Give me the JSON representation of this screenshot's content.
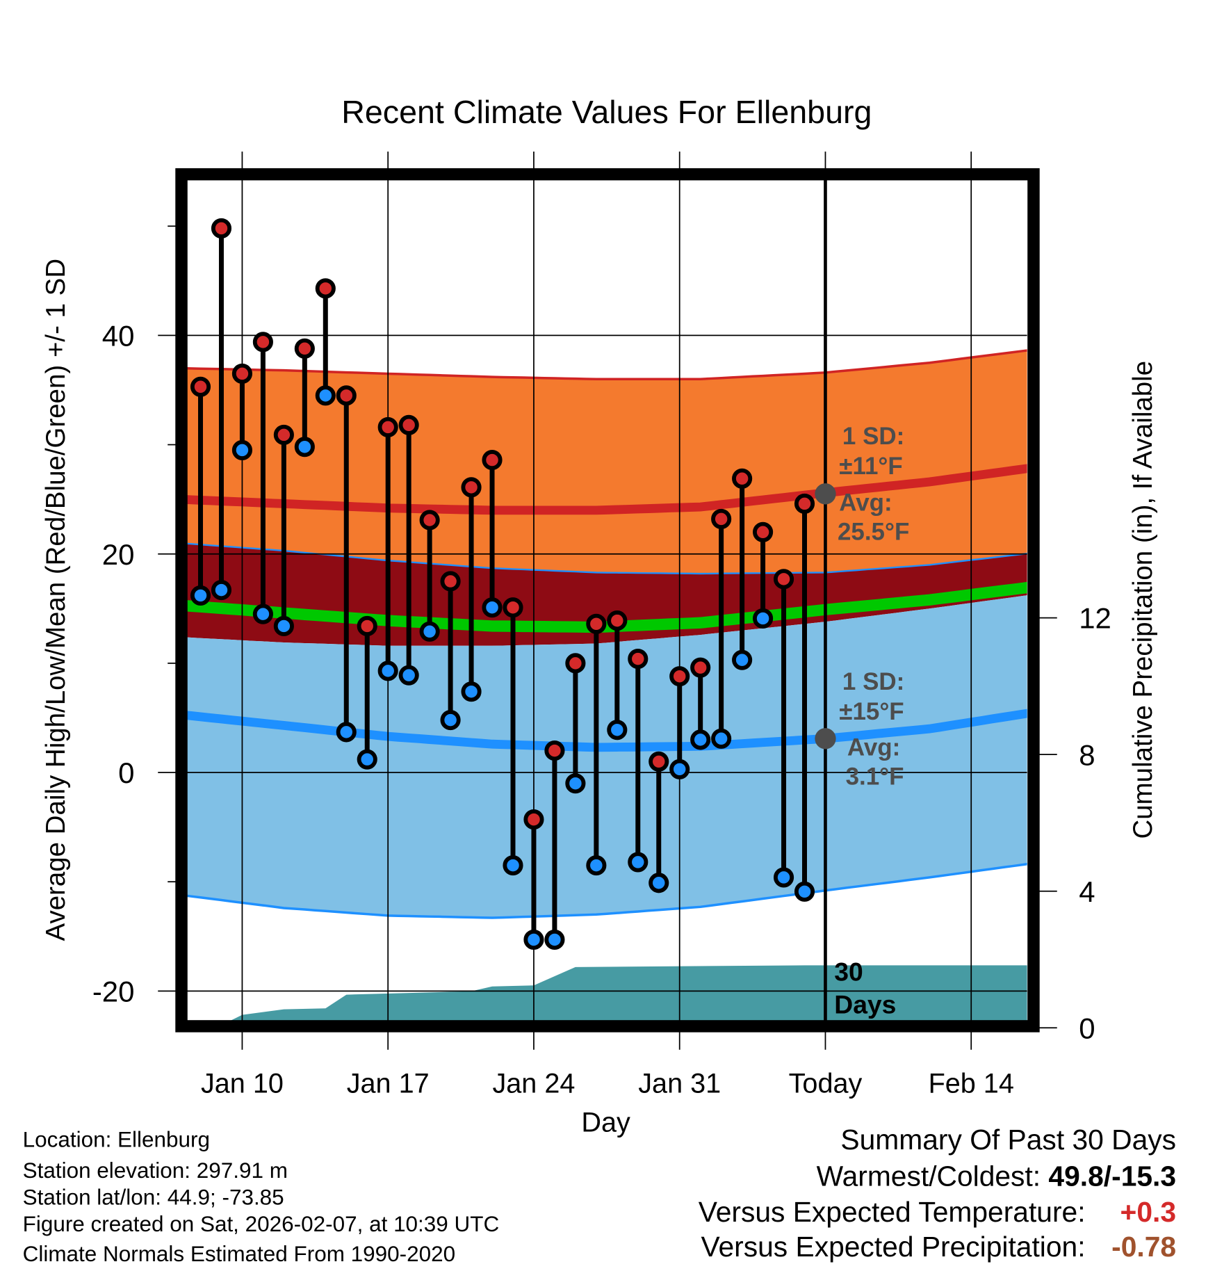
{
  "chart_data": {
    "type": "line",
    "title": "Recent Climate Values For Ellenburg",
    "xlabel": "Day",
    "ylabel": "Average Daily High/Low/Mean (Red/Blue/Green) +/- 1 SD",
    "ylabel_right": "Cumulative Precipitation (in), If Available",
    "ylim": [
      -23,
      55
    ],
    "ylim_right": [
      0,
      18.5
    ],
    "xlim_day_of_year": [
      7.35,
      47.7
    ],
    "grid": true,
    "y_ticks": [
      {
        "value": 40,
        "label": "40"
      },
      {
        "value": 20,
        "label": "20"
      },
      {
        "value": 0,
        "label": "0"
      },
      {
        "value": -20,
        "label": "-20"
      }
    ],
    "y_minor_ticks": [
      50,
      30,
      10,
      -10
    ],
    "y_right_ticks": [
      {
        "value": 12,
        "label": "12"
      },
      {
        "value": 8,
        "label": "8"
      },
      {
        "value": 4,
        "label": "4"
      },
      {
        "value": 0,
        "label": "0"
      }
    ],
    "x_ticks": [
      {
        "day": 10,
        "label": "Jan 10"
      },
      {
        "day": 17,
        "label": "Jan 17"
      },
      {
        "day": 24,
        "label": "Jan 24"
      },
      {
        "day": 31,
        "label": "Jan 31"
      },
      {
        "day": 38,
        "label": "Today"
      },
      {
        "day": 45,
        "label": "Feb 14"
      }
    ],
    "today_day": 38,
    "observations": {
      "days": [
        "Jan 8",
        "Jan 9",
        "Jan 10",
        "Jan 11",
        "Jan 12",
        "Jan 13",
        "Jan 14",
        "Jan 15",
        "Jan 16",
        "Jan 17",
        "Jan 18",
        "Jan 19",
        "Jan 20",
        "Jan 21",
        "Jan 22",
        "Jan 23",
        "Jan 24",
        "Jan 25",
        "Jan 26",
        "Jan 27",
        "Jan 28",
        "Jan 29",
        "Jan 30",
        "Jan 31",
        "Feb 1",
        "Feb 2",
        "Feb 3",
        "Feb 4",
        "Feb 5",
        "Feb 6"
      ],
      "day_of_year": [
        8,
        9,
        10,
        11,
        12,
        13,
        14,
        15,
        16,
        17,
        18,
        19,
        20,
        21,
        22,
        23,
        24,
        25,
        26,
        27,
        28,
        29,
        30,
        31,
        32,
        33,
        34,
        35,
        36,
        37
      ],
      "high": [
        35.3,
        49.8,
        36.5,
        39.4,
        30.9,
        38.8,
        44.3,
        34.5,
        13.4,
        31.6,
        31.8,
        23.1,
        17.5,
        26.1,
        28.6,
        15.1,
        -4.3,
        2.0,
        10.0,
        13.6,
        13.9,
        10.4,
        1.0,
        8.8,
        9.6,
        23.2,
        26.9,
        22.0,
        17.7,
        24.6
      ],
      "low": [
        16.2,
        16.7,
        29.5,
        14.5,
        13.4,
        29.8,
        34.5,
        3.7,
        1.2,
        9.3,
        8.9,
        12.9,
        4.8,
        7.4,
        15.1,
        -8.5,
        -15.3,
        -15.3,
        -1.0,
        -8.5,
        3.9,
        -8.2,
        -10.1,
        0.3,
        3.0,
        3.1,
        10.3,
        14.1,
        -9.6,
        -10.9
      ]
    },
    "normals": {
      "day_of_year": [
        7,
        12,
        17,
        22,
        27,
        32,
        38,
        43,
        48
      ],
      "high_plus_sd": [
        37.0,
        36.8,
        36.5,
        36.2,
        36.0,
        36.0,
        36.6,
        37.5,
        38.7
      ],
      "high_avg": [
        25.0,
        24.6,
        24.2,
        24.0,
        24.0,
        24.3,
        25.6,
        26.6,
        27.9
      ],
      "high_minus_sd": [
        21.0,
        20.3,
        19.4,
        18.7,
        18.3,
        18.2,
        18.3,
        19.0,
        20.1
      ],
      "mean_avg": [
        15.3,
        14.6,
        13.9,
        13.4,
        13.3,
        13.7,
        14.9,
        15.8,
        17.0
      ],
      "low_plus_sd": [
        12.4,
        11.9,
        11.6,
        11.6,
        11.8,
        12.6,
        13.8,
        15.0,
        16.3
      ],
      "low_avg": [
        5.3,
        4.3,
        3.3,
        2.6,
        2.3,
        2.4,
        3.1,
        4.0,
        5.5
      ],
      "low_minus_sd": [
        -11.2,
        -12.4,
        -13.1,
        -13.3,
        -13.0,
        -12.3,
        -10.8,
        -9.6,
        -8.3
      ]
    },
    "precip_cumulative": {
      "day_of_year": [
        7,
        9.4,
        10,
        12,
        14,
        15,
        21,
        22,
        24,
        26,
        37,
        48
      ],
      "inches": [
        0,
        0.2,
        0.38,
        0.54,
        0.57,
        0.97,
        1.07,
        1.21,
        1.24,
        1.78,
        1.83,
        1.83
      ]
    },
    "annotations": {
      "high_sd": [
        "1 SD:",
        "±11°F"
      ],
      "high_avg": [
        "Avg:",
        "25.5°F"
      ],
      "low_sd": [
        "1 SD:",
        "±15°F"
      ],
      "low_avg": [
        "Avg:",
        "3.1°F"
      ],
      "period": [
        "30",
        "Days"
      ]
    },
    "colors": {
      "high_band": "#f47a2e",
      "overlap_band": "#8e0b14",
      "low_band": "#80c0e6",
      "high_line": "#d02424",
      "low_line": "#1e90ff",
      "mean_line": "#00c800",
      "precip": "#479ba3",
      "high_marker": "#d42a2a",
      "low_marker": "#1e90ff",
      "annotation": "#4d4d4d"
    }
  },
  "info": {
    "location": "Location: Ellenburg",
    "elevation": "Station elevation: 297.91 m",
    "latlon": "Station lat/lon: 44.9; -73.85",
    "created": "Figure created on Sat, 2026-02-07, at 10:39 UTC",
    "normals": "Climate Normals Estimated From 1990-2020"
  },
  "summary": {
    "title": "Summary Of Past 30 Days",
    "warmest_label": "Warmest/Coldest: ",
    "warmest_value": "49.8/-15.3",
    "temp_label": "Versus Expected Temperature:",
    "temp_value": "+0.3",
    "temp_color": "#d42a2a",
    "precip_label": "Versus Expected Precipitation:",
    "precip_value": "-0.78",
    "precip_color": "#a0522d"
  }
}
